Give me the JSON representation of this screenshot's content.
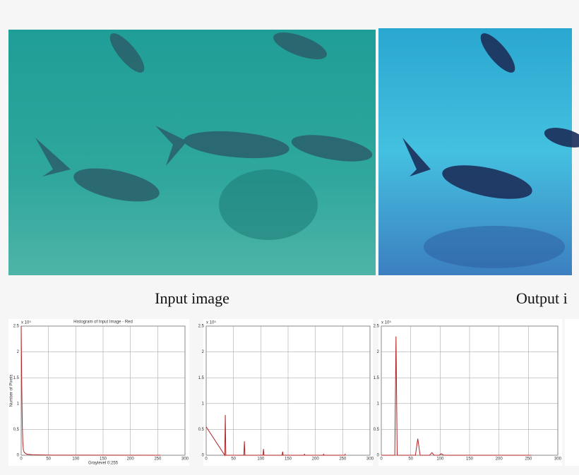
{
  "captions": [
    "Input image",
    "Output i"
  ],
  "chart_data": [
    {
      "type": "line",
      "title": "Histogram of Input Image - Red",
      "y_label": "Number of Pixels",
      "x_label": "Graylevel 0:255",
      "y_unit": "x 10⁵",
      "x": [
        0,
        1,
        2,
        3,
        4,
        6,
        10,
        20,
        40,
        60,
        255
      ],
      "values": [
        2.5,
        1.4,
        0.6,
        0.25,
        0.1,
        0.05,
        0.02,
        0.01,
        0.005,
        0.002,
        0
      ],
      "color": "#b22222",
      "xlim": [
        0,
        300
      ],
      "ylim": [
        0,
        2.5
      ],
      "xticks": [
        0,
        50,
        100,
        150,
        200,
        250,
        300
      ],
      "yticks": [
        0,
        0.5,
        1,
        1.5,
        2,
        2.5
      ],
      "grid": true
    },
    {
      "type": "line",
      "y_unit": "x 10⁵",
      "x": [
        0,
        34,
        35,
        36,
        69,
        70,
        71,
        104,
        105,
        106,
        139,
        140,
        141,
        179,
        180,
        181,
        214,
        215,
        216,
        254,
        255
      ],
      "values": [
        0.55,
        0,
        0.78,
        0,
        0,
        0.27,
        0,
        0,
        0.12,
        0,
        0,
        0.07,
        0,
        0,
        0.02,
        0,
        0,
        0.02,
        0,
        0,
        0.03
      ],
      "color": "#b22222",
      "xlim": [
        0,
        300
      ],
      "ylim": [
        0,
        2.5
      ],
      "xticks": [
        0,
        50,
        100,
        150,
        200,
        250,
        300
      ],
      "yticks": [
        0,
        0.5,
        1,
        1.5,
        2,
        2.5
      ],
      "grid": true
    },
    {
      "type": "line",
      "y_unit": "x 10⁵",
      "x": [
        0,
        23,
        25,
        27,
        58,
        62,
        66,
        82,
        86,
        90,
        98,
        102,
        106,
        255
      ],
      "values": [
        0,
        0,
        2.3,
        0,
        0,
        0.32,
        0,
        0,
        0.05,
        0,
        0,
        0.03,
        0,
        0
      ],
      "color": "#b22222",
      "xlim": [
        0,
        300
      ],
      "ylim": [
        0,
        2.5
      ],
      "xticks": [
        0,
        50,
        100,
        150,
        200,
        250,
        300
      ],
      "yticks": [
        0,
        0.5,
        1,
        1.5,
        2,
        2.5
      ],
      "grid": true
    }
  ]
}
